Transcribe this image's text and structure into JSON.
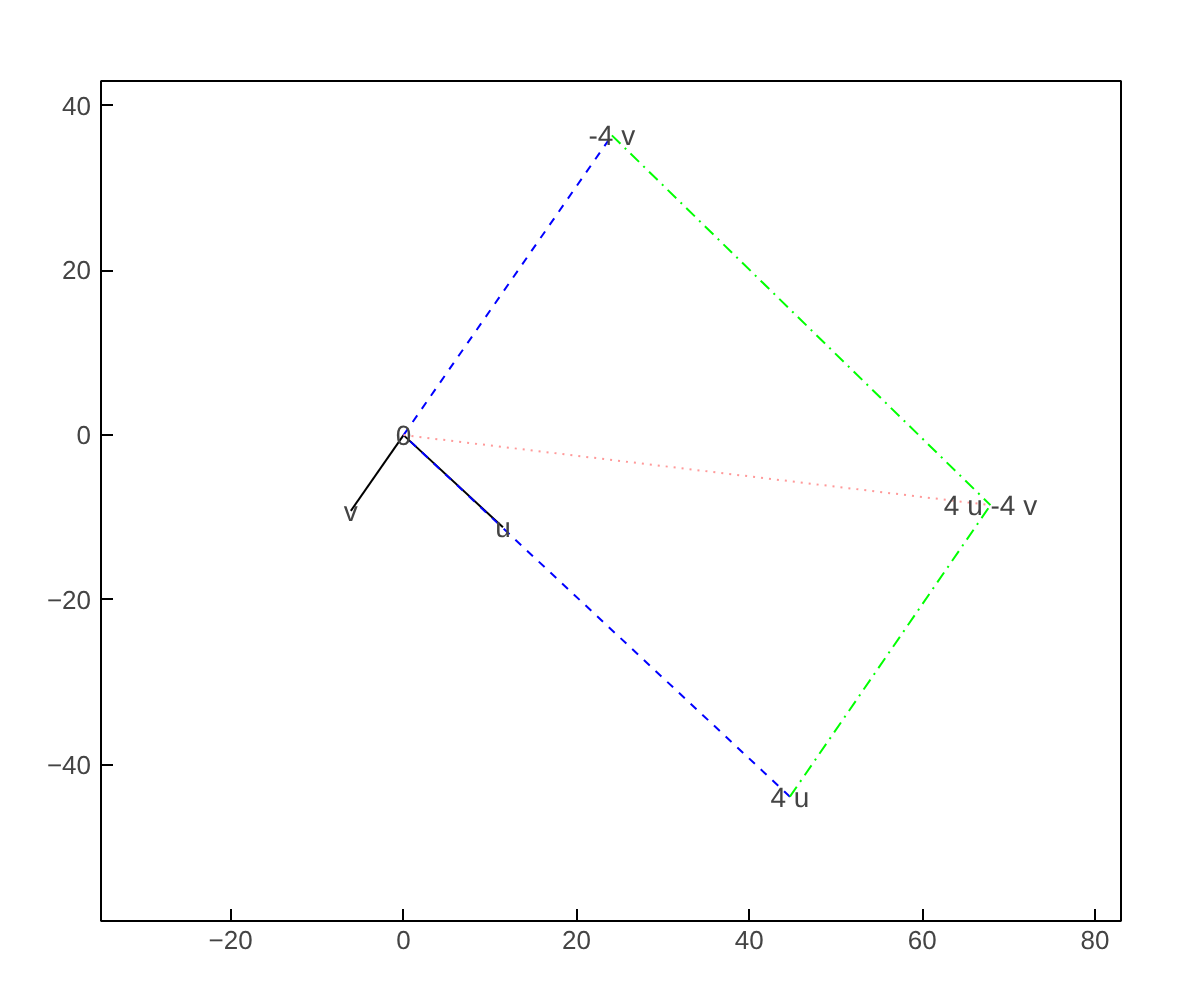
{
  "chart_data": {
    "type": "line",
    "xlim": [
      -35,
      83
    ],
    "ylim": [
      -59,
      43
    ],
    "xticks": [
      -20,
      0,
      20,
      40,
      60,
      80
    ],
    "yticks": [
      -40,
      -20,
      0,
      20,
      40
    ],
    "series": [
      {
        "color": "#000000",
        "line_style": "solid",
        "x": [
          0,
          -6.1
        ],
        "values": [
          0,
          -9.2
        ]
      },
      {
        "color": "#000000",
        "line_style": "solid",
        "x": [
          0,
          11.5
        ],
        "values": [
          0,
          -11.2
        ]
      },
      {
        "color": "#0000ff",
        "line_style": "dashed",
        "x": [
          44.7,
          0
        ],
        "values": [
          -43.9,
          0
        ]
      },
      {
        "color": "#0000ff",
        "line_style": "dashed",
        "x": [
          0,
          24.1
        ],
        "values": [
          0,
          36.4
        ]
      },
      {
        "color": "#00ff00",
        "line_style": "dashdot",
        "x": [
          24.1,
          67.9
        ],
        "values": [
          36.4,
          -8.5
        ]
      },
      {
        "color": "#00ff00",
        "line_style": "dashdot",
        "x": [
          44.7,
          67.9
        ],
        "values": [
          -43.9,
          -8.5
        ]
      },
      {
        "color": "#ff9999",
        "line_style": "dotted",
        "x": [
          0,
          67.9
        ],
        "values": [
          0,
          -8.5
        ]
      }
    ],
    "annotations": [
      {
        "text": "0",
        "x": 0,
        "y": 0
      },
      {
        "text": "v",
        "x": -6.1,
        "y": -9.2
      },
      {
        "text": "u",
        "x": 11.5,
        "y": -11.2
      },
      {
        "text": "4 u",
        "x": 44.7,
        "y": -43.9
      },
      {
        "text": "-4 v",
        "x": 24.1,
        "y": 36.4
      },
      {
        "text": "4 u -4 v",
        "x": 67.9,
        "y": -8.5
      }
    ]
  }
}
